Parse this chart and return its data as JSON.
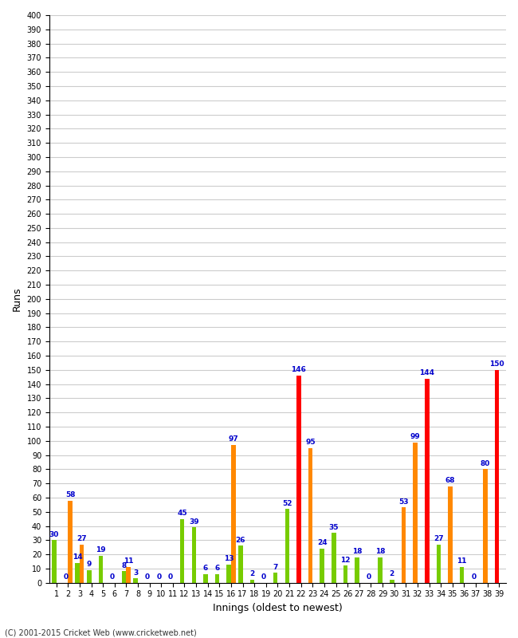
{
  "xlabel": "Innings (oldest to newest)",
  "ylabel": "Runs",
  "copyright": "(C) 2001-2015 Cricket Web (www.cricketweb.net)",
  "innings": [
    1,
    2,
    3,
    4,
    5,
    6,
    7,
    8,
    9,
    10,
    11,
    12,
    13,
    14,
    15,
    16,
    17,
    18,
    19,
    20,
    21,
    22,
    23,
    24,
    25,
    26,
    27,
    28,
    29,
    30,
    31,
    32,
    33,
    34,
    35,
    36,
    37,
    38,
    39
  ],
  "left_values": [
    30,
    0,
    14,
    9,
    19,
    0,
    8,
    3,
    0,
    0,
    0,
    45,
    39,
    6,
    6,
    13,
    26,
    2,
    0,
    7,
    52,
    146,
    95,
    24,
    35,
    12,
    18,
    0,
    18,
    2,
    53,
    99,
    144,
    27,
    68,
    11,
    0,
    80,
    150
  ],
  "right_values": [
    0,
    58,
    27,
    0,
    0,
    0,
    11,
    0,
    0,
    0,
    0,
    0,
    0,
    0,
    0,
    97,
    0,
    0,
    0,
    0,
    0,
    0,
    0,
    0,
    0,
    0,
    0,
    0,
    0,
    0,
    0,
    0,
    0,
    0,
    0,
    0,
    0,
    0,
    0
  ],
  "left_colors": [
    "#77cc00",
    "#77cc00",
    "#77cc00",
    "#77cc00",
    "#77cc00",
    "#77cc00",
    "#77cc00",
    "#77cc00",
    "#77cc00",
    "#77cc00",
    "#77cc00",
    "#77cc00",
    "#77cc00",
    "#77cc00",
    "#77cc00",
    "#77cc00",
    "#77cc00",
    "#77cc00",
    "#77cc00",
    "#77cc00",
    "#77cc00",
    "#ff0000",
    "#ff8800",
    "#77cc00",
    "#77cc00",
    "#77cc00",
    "#77cc00",
    "#77cc00",
    "#77cc00",
    "#77cc00",
    "#ff8800",
    "#ff8800",
    "#ff0000",
    "#77cc00",
    "#ff8800",
    "#77cc00",
    "#77cc00",
    "#ff8800",
    "#ff0000"
  ],
  "right_colors": [
    "#ff8800",
    "#ff8800",
    "#ff8800",
    "#ff8800",
    "#ff8800",
    "#ff8800",
    "#ff8800",
    "#ff8800",
    "#ff8800",
    "#ff8800",
    "#ff8800",
    "#ff8800",
    "#ff8800",
    "#ff8800",
    "#ff8800",
    "#ff8800",
    "#ff8800",
    "#ff8800",
    "#ff8800",
    "#ff8800",
    "#ff8800",
    "#ff8800",
    "#ff8800",
    "#ff8800",
    "#ff8800",
    "#ff8800",
    "#ff8800",
    "#ff8800",
    "#ff8800",
    "#ff8800",
    "#ff8800",
    "#ff8800",
    "#ff8800",
    "#ff8800",
    "#ff8800",
    "#ff8800",
    "#ff8800",
    "#ff8800",
    "#ff8800"
  ],
  "ylim": [
    0,
    400
  ],
  "yticks": [
    0,
    10,
    20,
    30,
    40,
    50,
    60,
    70,
    80,
    90,
    100,
    110,
    120,
    130,
    140,
    150,
    160,
    170,
    180,
    190,
    200,
    210,
    220,
    230,
    240,
    250,
    260,
    270,
    280,
    290,
    300,
    310,
    320,
    330,
    340,
    350,
    360,
    370,
    380,
    390,
    400
  ],
  "background_color": "#ffffff",
  "grid_color": "#cccccc",
  "bar_width": 0.38,
  "label_fontsize": 6.5,
  "label_color": "#0000cc"
}
